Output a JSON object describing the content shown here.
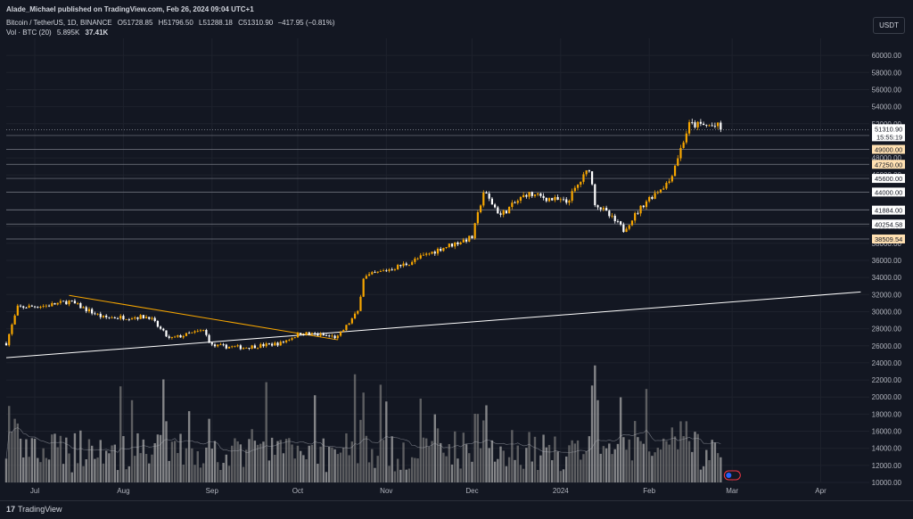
{
  "header": {
    "publisher": "Alade_Michael published on TradingView.com, Feb 26, 2024 09:04 UTC+1",
    "symbol": "Bitcoin / TetherUS, 1D, BINANCE",
    "o_label": "O",
    "o_value": "51728.85",
    "h_label": "H",
    "h_value": "51796.50",
    "l_label": "L",
    "l_value": "51288.18",
    "c_label": "C",
    "c_value": "51310.90",
    "change": "−417.95 (−0.81%)",
    "vol_label": "Vol · BTC (20)",
    "vol_value1": "5.895K",
    "vol_value2": "37.41K"
  },
  "unit_button": "USDT",
  "footer": {
    "logo_mark": "17",
    "logo_text": "TradingView"
  },
  "colors": {
    "background": "#131722",
    "up": "#f7a600",
    "down": "#ffffff",
    "grid": "#1e222d",
    "text": "#b2b5be",
    "trendline_down": "#f7a600",
    "trendline_up": "#ffffff",
    "level_line": "#787b86",
    "volume_up": "#777777",
    "volume_down": "#aaaaaa"
  },
  "chart_data": {
    "type": "candlestick",
    "ylim": [
      10000,
      62000
    ],
    "yticks": [
      10000,
      12000,
      14000,
      16000,
      18000,
      20000,
      22000,
      24000,
      26000,
      28000,
      30000,
      32000,
      34000,
      36000,
      38000,
      40000,
      42000,
      44000,
      46000,
      48000,
      52000,
      54000,
      56000,
      58000,
      60000
    ],
    "xlabels": [
      "Jul",
      "Aug",
      "Sep",
      "Oct",
      "Nov",
      "Dec",
      "2024",
      "Feb",
      "Mar",
      "Apr"
    ],
    "xlim": [
      "2023-06-21",
      "2024-04-18"
    ],
    "xticks_dates": [
      "2023-07-01",
      "2023-08-01",
      "2023-09-01",
      "2023-10-01",
      "2023-11-01",
      "2023-12-01",
      "2024-01-01",
      "2024-02-01",
      "2024-03-01",
      "2024-04-01"
    ],
    "current_price": {
      "value": "51310.90",
      "countdown": "15:55:19"
    },
    "price_levels": [
      {
        "value": 50625.0,
        "label": "50625.00",
        "style": "orange"
      },
      {
        "value": 49000.0,
        "label": "49000.00",
        "style": "orange"
      },
      {
        "value": 47250.0,
        "label": "47250.00",
        "style": "orange"
      },
      {
        "value": 45600.0,
        "label": "45600.00",
        "style": "white"
      },
      {
        "value": 44000.0,
        "label": "44000.00",
        "style": "white"
      },
      {
        "value": 41884.0,
        "label": "41884.00",
        "style": "white"
      },
      {
        "value": 40254.58,
        "label": "40254.58",
        "style": "white"
      },
      {
        "value": 38509.54,
        "label": "38509.54",
        "style": "orange"
      }
    ],
    "trendlines": [
      {
        "name": "descending",
        "start": [
          "2023-07-13",
          31900
        ],
        "end": [
          "2023-10-15",
          26700
        ]
      },
      {
        "name": "ascending",
        "start": [
          "2023-06-21",
          24600
        ],
        "end": [
          "2024-04-15",
          32300
        ]
      }
    ],
    "volume": {
      "ma_period": 20,
      "ylim_fraction": 0.25
    },
    "anchors": [
      [
        "2023-06-21",
        26300
      ],
      [
        "2023-06-25",
        30500
      ],
      [
        "2023-07-05",
        30700
      ],
      [
        "2023-07-13",
        31200
      ],
      [
        "2023-07-25",
        29300
      ],
      [
        "2023-08-10",
        29400
      ],
      [
        "2023-08-17",
        26800
      ],
      [
        "2023-08-29",
        27800
      ],
      [
        "2023-09-01",
        26000
      ],
      [
        "2023-09-12",
        25800
      ],
      [
        "2023-09-25",
        26300
      ],
      [
        "2023-10-02",
        27500
      ],
      [
        "2023-10-15",
        27000
      ],
      [
        "2023-10-22",
        30000
      ],
      [
        "2023-10-24",
        34000
      ],
      [
        "2023-11-08",
        35600
      ],
      [
        "2023-11-20",
        37400
      ],
      [
        "2023-12-01",
        38700
      ],
      [
        "2023-12-05",
        44000
      ],
      [
        "2023-12-11",
        41300
      ],
      [
        "2023-12-20",
        43800
      ],
      [
        "2024-01-03",
        42800
      ],
      [
        "2024-01-11",
        46800
      ],
      [
        "2024-01-13",
        42800
      ],
      [
        "2024-01-23",
        39600
      ],
      [
        "2024-01-31",
        43000
      ],
      [
        "2024-02-08",
        45300
      ],
      [
        "2024-02-15",
        51900
      ],
      [
        "2024-02-25",
        51700
      ],
      [
        "2024-02-26",
        51310
      ]
    ]
  }
}
